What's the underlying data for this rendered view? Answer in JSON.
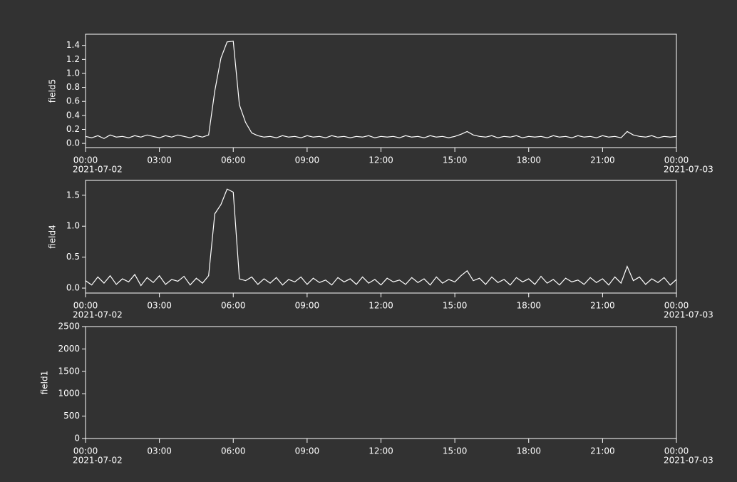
{
  "chart_data": [
    {
      "type": "line",
      "ylabel": "field5",
      "x": [
        "2021-07-02 00:00",
        "2021-07-02 00:15",
        "2021-07-02 00:30",
        "2021-07-02 00:45",
        "2021-07-02 01:00",
        "2021-07-02 01:15",
        "2021-07-02 01:30",
        "2021-07-02 01:45",
        "2021-07-02 02:00",
        "2021-07-02 02:15",
        "2021-07-02 02:30",
        "2021-07-02 02:45",
        "2021-07-02 03:00",
        "2021-07-02 03:15",
        "2021-07-02 03:30",
        "2021-07-02 03:45",
        "2021-07-02 04:00",
        "2021-07-02 04:15",
        "2021-07-02 04:30",
        "2021-07-02 04:45",
        "2021-07-02 05:00",
        "2021-07-02 05:15",
        "2021-07-02 05:30",
        "2021-07-02 05:45",
        "2021-07-02 06:00",
        "2021-07-02 06:15",
        "2021-07-02 06:30",
        "2021-07-02 06:45",
        "2021-07-02 07:00",
        "2021-07-02 07:15",
        "2021-07-02 07:30",
        "2021-07-02 07:45",
        "2021-07-02 08:00",
        "2021-07-02 08:15",
        "2021-07-02 08:30",
        "2021-07-02 08:45",
        "2021-07-02 09:00",
        "2021-07-02 09:15",
        "2021-07-02 09:30",
        "2021-07-02 09:45",
        "2021-07-02 10:00",
        "2021-07-02 10:15",
        "2021-07-02 10:30",
        "2021-07-02 10:45",
        "2021-07-02 11:00",
        "2021-07-02 11:15",
        "2021-07-02 11:30",
        "2021-07-02 11:45",
        "2021-07-02 12:00",
        "2021-07-02 12:15",
        "2021-07-02 12:30",
        "2021-07-02 12:45",
        "2021-07-02 13:00",
        "2021-07-02 13:15",
        "2021-07-02 13:30",
        "2021-07-02 13:45",
        "2021-07-02 14:00",
        "2021-07-02 14:15",
        "2021-07-02 14:30",
        "2021-07-02 14:45",
        "2021-07-02 15:00",
        "2021-07-02 15:15",
        "2021-07-02 15:30",
        "2021-07-02 15:45",
        "2021-07-02 16:00",
        "2021-07-02 16:15",
        "2021-07-02 16:30",
        "2021-07-02 16:45",
        "2021-07-02 17:00",
        "2021-07-02 17:15",
        "2021-07-02 17:30",
        "2021-07-02 17:45",
        "2021-07-02 18:00",
        "2021-07-02 18:15",
        "2021-07-02 18:30",
        "2021-07-02 18:45",
        "2021-07-02 19:00",
        "2021-07-02 19:15",
        "2021-07-02 19:30",
        "2021-07-02 19:45",
        "2021-07-02 20:00",
        "2021-07-02 20:15",
        "2021-07-02 20:30",
        "2021-07-02 20:45",
        "2021-07-02 21:00",
        "2021-07-02 21:15",
        "2021-07-02 21:30",
        "2021-07-02 21:45",
        "2021-07-02 22:00",
        "2021-07-02 22:15",
        "2021-07-02 22:30",
        "2021-07-02 22:45",
        "2021-07-02 23:00",
        "2021-07-02 23:15",
        "2021-07-02 23:30",
        "2021-07-02 23:45",
        "2021-07-03 00:00"
      ],
      "series": [
        {
          "color": "#ffffff",
          "values": [
            0.1,
            0.08,
            0.11,
            0.07,
            0.12,
            0.09,
            0.1,
            0.08,
            0.11,
            0.09,
            0.12,
            0.1,
            0.08,
            0.11,
            0.09,
            0.12,
            0.1,
            0.08,
            0.11,
            0.09,
            0.12,
            0.75,
            1.22,
            1.45,
            1.46,
            0.55,
            0.3,
            0.15,
            0.11,
            0.09,
            0.1,
            0.08,
            0.11,
            0.09,
            0.1,
            0.08,
            0.11,
            0.09,
            0.1,
            0.08,
            0.11,
            0.09,
            0.1,
            0.08,
            0.1,
            0.09,
            0.11,
            0.08,
            0.1,
            0.09,
            0.1,
            0.08,
            0.11,
            0.09,
            0.1,
            0.08,
            0.11,
            0.09,
            0.1,
            0.08,
            0.1,
            0.13,
            0.17,
            0.12,
            0.1,
            0.09,
            0.11,
            0.08,
            0.1,
            0.09,
            0.11,
            0.08,
            0.1,
            0.09,
            0.1,
            0.08,
            0.11,
            0.09,
            0.1,
            0.08,
            0.11,
            0.09,
            0.1,
            0.08,
            0.11,
            0.09,
            0.1,
            0.08,
            0.17,
            0.12,
            0.1,
            0.09,
            0.11,
            0.08,
            0.1,
            0.09,
            0.1
          ]
        }
      ],
      "xlim": [
        "2021-07-02 00:00",
        "2021-07-03 00:00"
      ],
      "xticks": [
        {
          "value": "2021-07-02 00:00",
          "label": "00:00"
        },
        {
          "value": "2021-07-02 03:00",
          "label": "03:00"
        },
        {
          "value": "2021-07-02 06:00",
          "label": "06:00"
        },
        {
          "value": "2021-07-02 09:00",
          "label": "09:00"
        },
        {
          "value": "2021-07-02 12:00",
          "label": "12:00"
        },
        {
          "value": "2021-07-02 15:00",
          "label": "15:00"
        },
        {
          "value": "2021-07-02 18:00",
          "label": "18:00"
        },
        {
          "value": "2021-07-02 21:00",
          "label": "21:00"
        },
        {
          "value": "2021-07-03 00:00",
          "label": "00:00"
        }
      ],
      "xdate_ticks": [
        {
          "value": "2021-07-02 00:00",
          "label": "2021-07-02"
        },
        {
          "value": "2021-07-03 00:00",
          "label": "2021-07-03"
        }
      ],
      "ylim": [
        -0.06,
        1.56
      ],
      "yticks": [
        {
          "value": 0,
          "label": "0.0"
        },
        0.2,
        0.4,
        0.6,
        0.8,
        {
          "value": 1,
          "label": "1.0"
        },
        1.2,
        1.4
      ]
    },
    {
      "type": "line",
      "ylabel": "field4",
      "x": [
        "2021-07-02 00:00",
        "2021-07-02 00:15",
        "2021-07-02 00:30",
        "2021-07-02 00:45",
        "2021-07-02 01:00",
        "2021-07-02 01:15",
        "2021-07-02 01:30",
        "2021-07-02 01:45",
        "2021-07-02 02:00",
        "2021-07-02 02:15",
        "2021-07-02 02:30",
        "2021-07-02 02:45",
        "2021-07-02 03:00",
        "2021-07-02 03:15",
        "2021-07-02 03:30",
        "2021-07-02 03:45",
        "2021-07-02 04:00",
        "2021-07-02 04:15",
        "2021-07-02 04:30",
        "2021-07-02 04:45",
        "2021-07-02 05:00",
        "2021-07-02 05:15",
        "2021-07-02 05:30",
        "2021-07-02 05:45",
        "2021-07-02 06:00",
        "2021-07-02 06:15",
        "2021-07-02 06:30",
        "2021-07-02 06:45",
        "2021-07-02 07:00",
        "2021-07-02 07:15",
        "2021-07-02 07:30",
        "2021-07-02 07:45",
        "2021-07-02 08:00",
        "2021-07-02 08:15",
        "2021-07-02 08:30",
        "2021-07-02 08:45",
        "2021-07-02 09:00",
        "2021-07-02 09:15",
        "2021-07-02 09:30",
        "2021-07-02 09:45",
        "2021-07-02 10:00",
        "2021-07-02 10:15",
        "2021-07-02 10:30",
        "2021-07-02 10:45",
        "2021-07-02 11:00",
        "2021-07-02 11:15",
        "2021-07-02 11:30",
        "2021-07-02 11:45",
        "2021-07-02 12:00",
        "2021-07-02 12:15",
        "2021-07-02 12:30",
        "2021-07-02 12:45",
        "2021-07-02 13:00",
        "2021-07-02 13:15",
        "2021-07-02 13:30",
        "2021-07-02 13:45",
        "2021-07-02 14:00",
        "2021-07-02 14:15",
        "2021-07-02 14:30",
        "2021-07-02 14:45",
        "2021-07-02 15:00",
        "2021-07-02 15:15",
        "2021-07-02 15:30",
        "2021-07-02 15:45",
        "2021-07-02 16:00",
        "2021-07-02 16:15",
        "2021-07-02 16:30",
        "2021-07-02 16:45",
        "2021-07-02 17:00",
        "2021-07-02 17:15",
        "2021-07-02 17:30",
        "2021-07-02 17:45",
        "2021-07-02 18:00",
        "2021-07-02 18:15",
        "2021-07-02 18:30",
        "2021-07-02 18:45",
        "2021-07-02 19:00",
        "2021-07-02 19:15",
        "2021-07-02 19:30",
        "2021-07-02 19:45",
        "2021-07-02 20:00",
        "2021-07-02 20:15",
        "2021-07-02 20:30",
        "2021-07-02 20:45",
        "2021-07-02 21:00",
        "2021-07-02 21:15",
        "2021-07-02 21:30",
        "2021-07-02 21:45",
        "2021-07-02 22:00",
        "2021-07-02 22:15",
        "2021-07-02 22:30",
        "2021-07-02 22:45",
        "2021-07-02 23:00",
        "2021-07-02 23:15",
        "2021-07-02 23:30",
        "2021-07-02 23:45",
        "2021-07-03 00:00"
      ],
      "series": [
        {
          "color": "#ffffff",
          "values": [
            0.12,
            0.05,
            0.18,
            0.08,
            0.2,
            0.06,
            0.15,
            0.1,
            0.22,
            0.04,
            0.17,
            0.09,
            0.2,
            0.06,
            0.14,
            0.11,
            0.19,
            0.05,
            0.16,
            0.08,
            0.2,
            1.2,
            1.35,
            1.6,
            1.55,
            0.15,
            0.12,
            0.18,
            0.06,
            0.15,
            0.08,
            0.17,
            0.05,
            0.14,
            0.1,
            0.18,
            0.06,
            0.16,
            0.09,
            0.13,
            0.05,
            0.17,
            0.1,
            0.15,
            0.06,
            0.18,
            0.08,
            0.14,
            0.05,
            0.16,
            0.1,
            0.13,
            0.06,
            0.17,
            0.09,
            0.15,
            0.05,
            0.18,
            0.08,
            0.14,
            0.1,
            0.2,
            0.28,
            0.12,
            0.16,
            0.06,
            0.18,
            0.09,
            0.14,
            0.05,
            0.17,
            0.1,
            0.15,
            0.06,
            0.19,
            0.08,
            0.14,
            0.05,
            0.16,
            0.1,
            0.13,
            0.06,
            0.17,
            0.09,
            0.15,
            0.05,
            0.18,
            0.08,
            0.35,
            0.12,
            0.18,
            0.06,
            0.15,
            0.09,
            0.17,
            0.05,
            0.14
          ]
        }
      ],
      "xlim": [
        "2021-07-02 00:00",
        "2021-07-03 00:00"
      ],
      "xticks": [
        {
          "value": "2021-07-02 00:00",
          "label": "00:00"
        },
        {
          "value": "2021-07-02 03:00",
          "label": "03:00"
        },
        {
          "value": "2021-07-02 06:00",
          "label": "06:00"
        },
        {
          "value": "2021-07-02 09:00",
          "label": "09:00"
        },
        {
          "value": "2021-07-02 12:00",
          "label": "12:00"
        },
        {
          "value": "2021-07-02 15:00",
          "label": "15:00"
        },
        {
          "value": "2021-07-02 18:00",
          "label": "18:00"
        },
        {
          "value": "2021-07-02 21:00",
          "label": "21:00"
        },
        {
          "value": "2021-07-03 00:00",
          "label": "00:00"
        }
      ],
      "xdate_ticks": [
        {
          "value": "2021-07-02 00:00",
          "label": "2021-07-02"
        },
        {
          "value": "2021-07-03 00:00",
          "label": "2021-07-03"
        }
      ],
      "ylim": [
        -0.08,
        1.74
      ],
      "yticks": [
        {
          "value": 0,
          "label": "0.0"
        },
        0.5,
        {
          "value": 1,
          "label": "1.0"
        },
        1.5
      ]
    },
    {
      "type": "line",
      "ylabel": "field1",
      "series": [],
      "xlim": [
        "2021-07-02 00:00",
        "2021-07-03 00:00"
      ],
      "xticks": [
        {
          "value": "2021-07-02 00:00",
          "label": "00:00"
        },
        {
          "value": "2021-07-02 03:00",
          "label": "03:00"
        },
        {
          "value": "2021-07-02 06:00",
          "label": "06:00"
        },
        {
          "value": "2021-07-02 09:00",
          "label": "09:00"
        },
        {
          "value": "2021-07-02 12:00",
          "label": "12:00"
        },
        {
          "value": "2021-07-02 15:00",
          "label": "15:00"
        },
        {
          "value": "2021-07-02 18:00",
          "label": "18:00"
        },
        {
          "value": "2021-07-02 21:00",
          "label": "21:00"
        },
        {
          "value": "2021-07-03 00:00",
          "label": "00:00"
        }
      ],
      "xdate_ticks": [
        {
          "value": "2021-07-02 00:00",
          "label": "2021-07-02"
        },
        {
          "value": "2021-07-03 00:00",
          "label": "2021-07-03"
        }
      ],
      "ylim": [
        0,
        2500
      ],
      "yticks": [
        0,
        500,
        1000,
        1500,
        2000,
        2500
      ]
    }
  ]
}
